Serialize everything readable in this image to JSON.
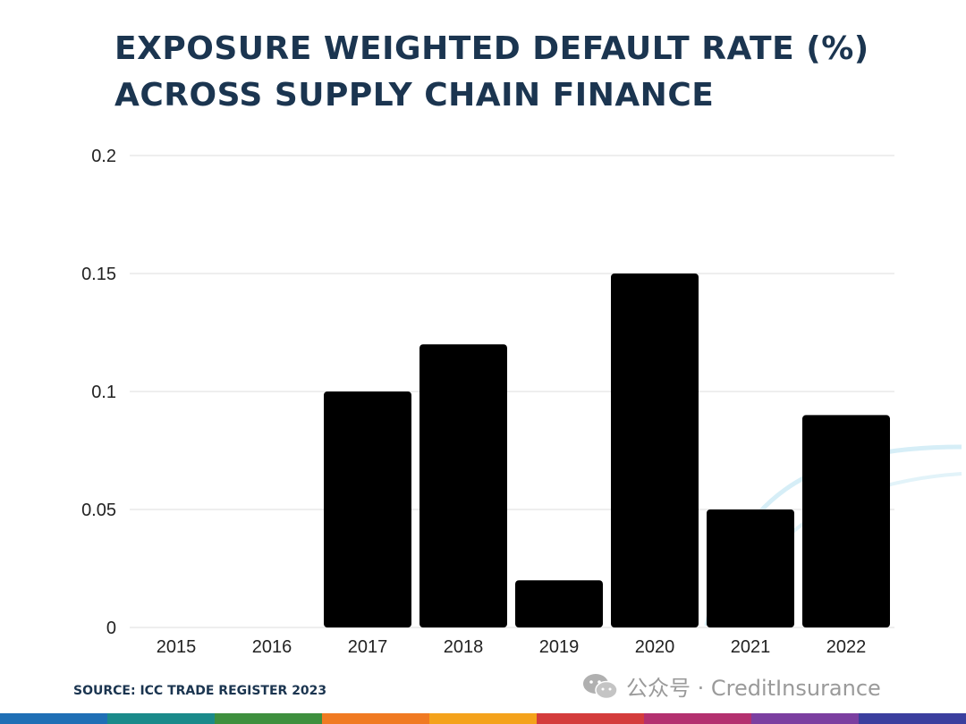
{
  "title_line1": "EXPOSURE WEIGHTED DEFAULT RATE (%)",
  "title_line2": "ACROSS SUPPLY CHAIN FINANCE",
  "source": "SOURCE: ICC TRADE REGISTER 2023",
  "watermark": {
    "text": "公众号 · CreditInsurance",
    "icon": "wechat-icon"
  },
  "footer_stripe_colors": [
    "#1f6fb5",
    "#1a8a8a",
    "#3e8f3e",
    "#f07a22",
    "#f4a21b",
    "#d43c3c",
    "#b3306f",
    "#7b3fa0",
    "#3b3f9e"
  ],
  "chart_data": {
    "type": "bar",
    "title": "EXPOSURE WEIGHTED DEFAULT RATE (%) ACROSS SUPPLY CHAIN FINANCE",
    "categories": [
      "2015",
      "2016",
      "2017",
      "2018",
      "2019",
      "2020",
      "2021",
      "2022"
    ],
    "values": [
      0,
      0,
      0.1,
      0.12,
      0.02,
      0.15,
      0.05,
      0.09
    ],
    "ylim": [
      0,
      0.2
    ],
    "yticks": [
      "0",
      "0.05",
      "0.1",
      "0.15",
      "0.2"
    ],
    "ytick_values": [
      0,
      0.05,
      0.1,
      0.15,
      0.2
    ],
    "grid": true,
    "bar_color": "#000000",
    "grid_color": "#dddddd",
    "xlabel": "",
    "ylabel": ""
  }
}
